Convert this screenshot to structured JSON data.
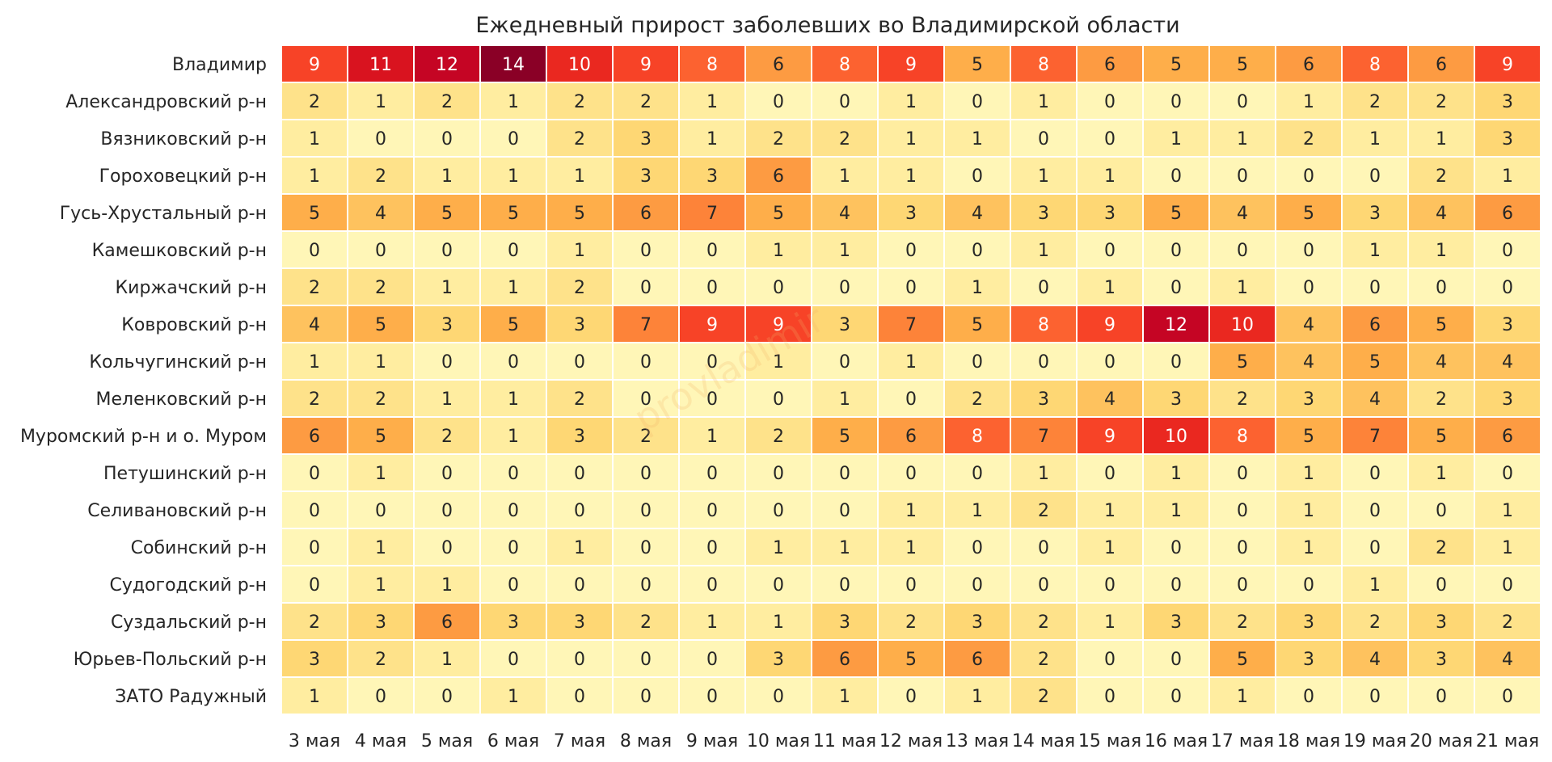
{
  "chart_data": {
    "type": "heatmap",
    "title": "Ежедневный прирост заболевших во Владимирской области",
    "xlabel": "",
    "ylabel": "",
    "watermark": "provladimir",
    "colormap": "YlOrRd",
    "value_range": [
      0,
      14
    ],
    "grid": false,
    "legend": "none",
    "columns": [
      "3 мая",
      "4 мая",
      "5 мая",
      "6 мая",
      "7 мая",
      "8 мая",
      "9 мая",
      "10 мая",
      "11 мая",
      "12 мая",
      "13 мая",
      "14 мая",
      "15 мая",
      "16 мая",
      "17 мая",
      "18 мая",
      "19 мая",
      "20 мая",
      "21 мая"
    ],
    "rows": [
      {
        "name": "Владимир",
        "values": [
          9,
          11,
          12,
          14,
          10,
          9,
          8,
          6,
          8,
          9,
          5,
          8,
          6,
          5,
          5,
          6,
          8,
          6,
          9
        ]
      },
      {
        "name": "Александровский р-н",
        "values": [
          2,
          1,
          2,
          1,
          2,
          2,
          1,
          0,
          0,
          1,
          0,
          1,
          0,
          0,
          0,
          1,
          2,
          2,
          3
        ]
      },
      {
        "name": "Вязниковский р-н",
        "values": [
          1,
          0,
          0,
          0,
          2,
          3,
          1,
          2,
          2,
          1,
          1,
          0,
          0,
          1,
          1,
          2,
          1,
          1,
          3
        ]
      },
      {
        "name": "Гороховецкий р-н",
        "values": [
          1,
          2,
          1,
          1,
          1,
          3,
          3,
          6,
          1,
          1,
          0,
          1,
          1,
          0,
          0,
          0,
          0,
          2,
          1
        ]
      },
      {
        "name": "Гусь-Хрустальный р-н",
        "values": [
          5,
          4,
          5,
          5,
          5,
          6,
          7,
          5,
          4,
          3,
          4,
          3,
          3,
          5,
          4,
          5,
          3,
          4,
          6
        ]
      },
      {
        "name": "Камешковский р-н",
        "values": [
          0,
          0,
          0,
          0,
          1,
          0,
          0,
          1,
          1,
          0,
          0,
          1,
          0,
          0,
          0,
          0,
          1,
          1,
          0
        ]
      },
      {
        "name": "Киржачский р-н",
        "values": [
          2,
          2,
          1,
          1,
          2,
          0,
          0,
          0,
          0,
          0,
          1,
          0,
          1,
          0,
          1,
          0,
          0,
          0,
          0
        ]
      },
      {
        "name": "Ковровский р-н",
        "values": [
          4,
          5,
          3,
          5,
          3,
          7,
          9,
          9,
          3,
          7,
          5,
          8,
          9,
          12,
          10,
          4,
          6,
          5,
          3
        ]
      },
      {
        "name": "Кольчугинский р-н",
        "values": [
          1,
          1,
          0,
          0,
          0,
          0,
          0,
          1,
          0,
          1,
          0,
          0,
          0,
          0,
          5,
          4,
          5,
          4,
          4
        ]
      },
      {
        "name": "Меленковский р-н",
        "values": [
          2,
          2,
          1,
          1,
          2,
          0,
          0,
          0,
          1,
          0,
          2,
          3,
          4,
          3,
          2,
          3,
          4,
          2,
          3
        ]
      },
      {
        "name": "Муромский р-н и о. Муром",
        "values": [
          6,
          5,
          2,
          1,
          3,
          2,
          1,
          2,
          5,
          6,
          8,
          7,
          9,
          10,
          8,
          5,
          7,
          5,
          6
        ]
      },
      {
        "name": "Петушинский р-н",
        "values": [
          0,
          1,
          0,
          0,
          0,
          0,
          0,
          0,
          0,
          0,
          0,
          1,
          0,
          1,
          0,
          1,
          0,
          1,
          0
        ]
      },
      {
        "name": "Селивановский р-н",
        "values": [
          0,
          0,
          0,
          0,
          0,
          0,
          0,
          0,
          0,
          1,
          1,
          2,
          1,
          1,
          0,
          1,
          0,
          0,
          1
        ]
      },
      {
        "name": "Собинский р-н",
        "values": [
          0,
          1,
          0,
          0,
          1,
          0,
          0,
          1,
          1,
          1,
          0,
          0,
          1,
          0,
          0,
          1,
          0,
          2,
          1
        ]
      },
      {
        "name": "Судогодский р-н",
        "values": [
          0,
          1,
          1,
          0,
          0,
          0,
          0,
          0,
          0,
          0,
          0,
          0,
          0,
          0,
          0,
          0,
          1,
          0,
          0
        ]
      },
      {
        "name": "Суздальский р-н",
        "values": [
          2,
          3,
          6,
          3,
          3,
          2,
          1,
          1,
          3,
          2,
          3,
          2,
          1,
          3,
          2,
          3,
          2,
          3,
          2
        ]
      },
      {
        "name": "Юрьев-Польский р-н",
        "values": [
          3,
          2,
          1,
          0,
          0,
          0,
          0,
          3,
          6,
          5,
          6,
          2,
          0,
          0,
          5,
          3,
          4,
          3,
          4
        ]
      },
      {
        "name": "ЗАТО Радужный",
        "values": [
          1,
          0,
          0,
          1,
          0,
          0,
          0,
          0,
          1,
          0,
          1,
          2,
          0,
          0,
          1,
          0,
          0,
          0,
          0
        ]
      }
    ]
  }
}
